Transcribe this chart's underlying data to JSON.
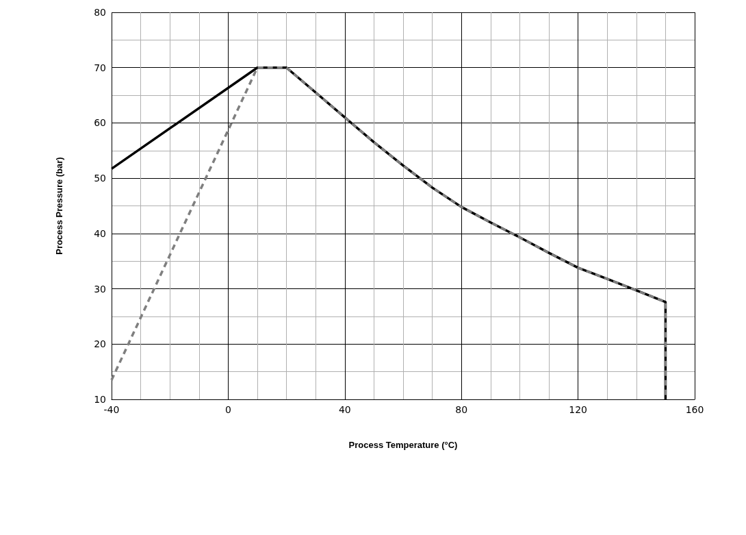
{
  "chart_data": {
    "type": "line",
    "xlabel": "Process Temperature (°C)",
    "ylabel": "Process Pressure (bar)",
    "xlim": [
      -40,
      160
    ],
    "xticks": [
      -40,
      0,
      40,
      80,
      120,
      160
    ],
    "ylim": [
      10,
      80
    ],
    "yticks": [
      10,
      20,
      30,
      40,
      50,
      60,
      70,
      80
    ],
    "grid": true,
    "marker": "none",
    "series": [
      {
        "color": "#000000",
        "line_style": "solid",
        "x": [
          -40,
          10,
          20,
          30,
          40,
          50,
          60,
          70,
          80,
          90,
          100,
          110,
          120,
          130,
          140,
          150,
          150
        ],
        "values": [
          51.7,
          70,
          70,
          65.5,
          61,
          56.5,
          52.3,
          48.3,
          44.8,
          42,
          39.3,
          36.5,
          33.8,
          31.8,
          29.7,
          27.6,
          10
        ]
      },
      {
        "color": "#7f7f7f",
        "line_style": "dashed",
        "x": [
          -40,
          10,
          20,
          30,
          40,
          50,
          60,
          70,
          80,
          90,
          100,
          110,
          120,
          130,
          140,
          150,
          150
        ],
        "values": [
          13.5,
          70,
          70,
          65.5,
          61,
          56.5,
          52.3,
          48.3,
          44.8,
          42,
          39.3,
          36.5,
          33.8,
          31.8,
          29.7,
          27.6,
          10
        ]
      }
    ]
  }
}
